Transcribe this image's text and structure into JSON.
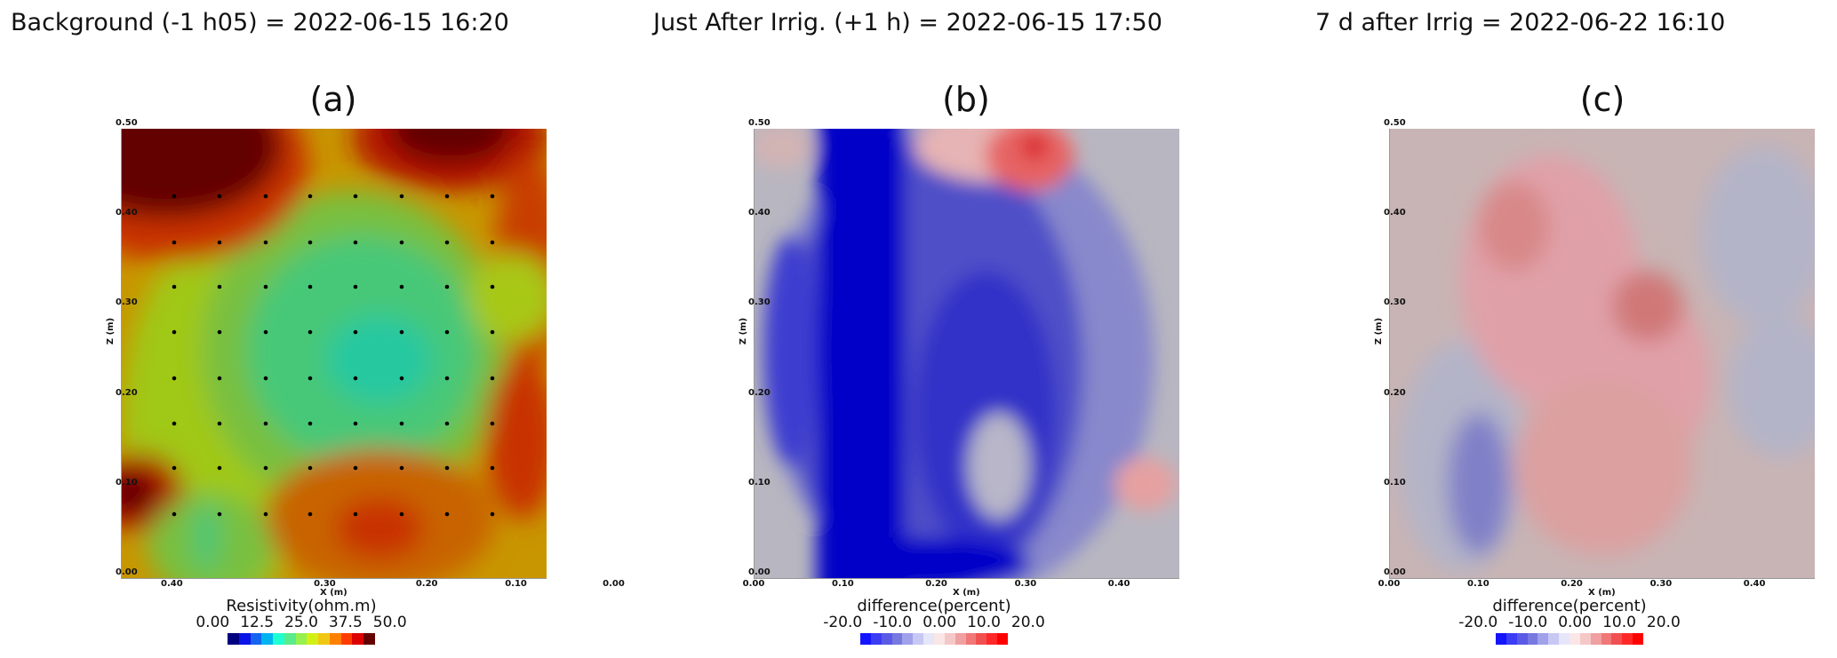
{
  "chart_data": [
    {
      "type": "heatmap",
      "suptitle": "Background (-1 h05) = 2022-06-15 16:20",
      "panel_label": "(a)",
      "xlabel": "X (m)",
      "ylabel": "Z (m)",
      "xticks": [
        "0.40",
        "0.30",
        "0.20",
        "0.10",
        "0.00"
      ],
      "yticks": [
        "0.50",
        "0.40",
        "0.30",
        "0.20",
        "0.10",
        "0.00"
      ],
      "colorbar": {
        "title": "Resistivity(ohm.m)",
        "ticks": [
          "0.00",
          "12.5",
          "25.0",
          "37.5",
          "50.0"
        ],
        "range": [
          0,
          50
        ],
        "colors": [
          "#000080",
          "#0a14e6",
          "#1464f0",
          "#00b4f0",
          "#1effd2",
          "#5aeb8c",
          "#96f050",
          "#d2f014",
          "#f0c814",
          "#ff8000",
          "#ff3c00",
          "#dc0000",
          "#640000"
        ]
      },
      "electrodes": "8x8 grid",
      "note": "High resistivity top-left and top-right corners, lower (~25) in centre"
    },
    {
      "type": "heatmap",
      "suptitle": "Just After Irrig. (+1 h) = 2022-06-15 17:50",
      "panel_label": "(b)",
      "xlabel": "X (m)",
      "ylabel": "Z (m)",
      "xticks": [
        "0.00",
        "0.10",
        "0.20",
        "0.30",
        "0.40"
      ],
      "yticks": [
        "0.50",
        "0.40",
        "0.30",
        "0.20",
        "0.10",
        "0.00"
      ],
      "colorbar": {
        "title": "difference(percent)",
        "ticks": [
          "-20.0",
          "-10.0",
          "0.00",
          "10.0",
          "20.0"
        ],
        "range": [
          -20,
          20
        ],
        "colors": [
          "#1414ff",
          "#3c3cf5",
          "#5a5ae6",
          "#7878e1",
          "#a0a0eb",
          "#c8c8f5",
          "#e6e6fa",
          "#fae6e6",
          "#f5c8c8",
          "#f0a0a0",
          "#f07878",
          "#f05050",
          "#ff2828",
          "#ff0000"
        ]
      },
      "note": "Strong negative (-20%) band x 0.05-0.20 m, positive anomaly top near x 0.33"
    },
    {
      "type": "heatmap",
      "suptitle": "7 d after Irrig = 2022-06-22 16:10",
      "panel_label": "(c)",
      "xlabel": "X (m)",
      "ylabel": "Z (m)",
      "xticks": [
        "0.00",
        "0.10",
        "0.20",
        "0.30",
        "0.40"
      ],
      "yticks": [
        "0.50",
        "0.40",
        "0.30",
        "0.20",
        "0.10",
        "0.00"
      ],
      "colorbar": {
        "title": "difference(percent)",
        "ticks": [
          "-20.0",
          "-10.0",
          "0.00",
          "10.0",
          "20.0"
        ],
        "range": [
          -20,
          20
        ],
        "colors": [
          "#1414ff",
          "#3c3cf5",
          "#5a5ae6",
          "#7878e1",
          "#a0a0eb",
          "#c8c8f5",
          "#e6e6fa",
          "#fae6e6",
          "#f5c8c8",
          "#f0a0a0",
          "#f07878",
          "#f05050",
          "#ff2828",
          "#ff0000"
        ]
      },
      "note": "Mild positive (~5-10%) in central region, mild negative lower left"
    }
  ]
}
